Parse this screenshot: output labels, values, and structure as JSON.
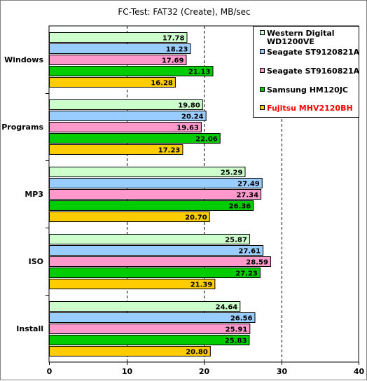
{
  "chart_data": {
    "type": "bar",
    "orientation": "horizontal",
    "title": "FC-Test: FAT32 (Create), MB/sec",
    "categories": [
      "Windows",
      "Programs",
      "MP3",
      "ISO",
      "Install"
    ],
    "xlim": [
      0,
      40
    ],
    "xticks": [
      0,
      10,
      20,
      30,
      40
    ],
    "grid": "vertical-dashed",
    "legend_position": "top-right",
    "series": [
      {
        "name": "Western Digital WD1200VE",
        "name_lines": [
          "Western Digital",
          "WD1200VE"
        ],
        "color": "#ccffcc",
        "values": [
          17.78,
          19.8,
          25.29,
          25.87,
          24.64
        ]
      },
      {
        "name": "Seagate ST9120821A",
        "name_lines": [
          "Seagate ST9120821A"
        ],
        "color": "#99ccff",
        "values": [
          18.23,
          20.24,
          27.49,
          27.61,
          26.56
        ]
      },
      {
        "name": "Seagate ST9160821A",
        "name_lines": [
          "Seagate ST9160821A"
        ],
        "color": "#ff99cc",
        "values": [
          17.69,
          19.63,
          27.34,
          28.59,
          25.91
        ]
      },
      {
        "name": "Samsung HM120JC",
        "name_lines": [
          "Samsung HM120JC"
        ],
        "color": "#00cc00",
        "values": [
          21.13,
          22.06,
          26.36,
          27.23,
          25.83
        ]
      },
      {
        "name": "Fujitsu MHV2120BH",
        "name_lines": [
          "Fujitsu MHV2120BH"
        ],
        "color": "#ffcc00",
        "values": [
          16.28,
          17.23,
          20.7,
          21.39,
          20.8
        ],
        "legend_text_color": "#ff0000"
      }
    ]
  }
}
